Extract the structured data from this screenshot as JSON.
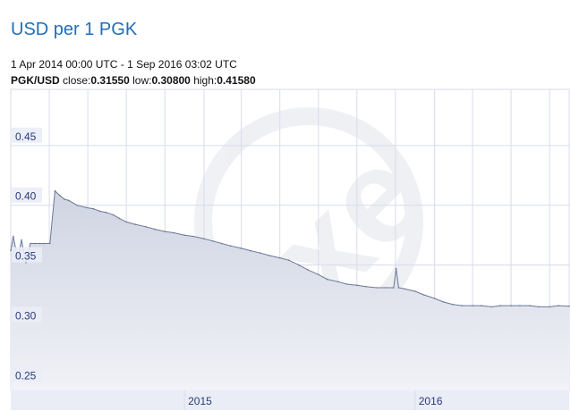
{
  "header": {
    "title": "USD per 1 PGK",
    "date_range": "1 Apr 2014 00:00 UTC - 1 Sep 2016 03:02 UTC",
    "pair": "PGK/USD",
    "close_label": "close:",
    "close_value": "0.31550",
    "low_label": "low:",
    "low_value": "0.30800",
    "high_label": "high:",
    "high_value": "0.41580"
  },
  "colors": {
    "line": "#6b7896",
    "fill_top": "#cfd4e2",
    "fill_bottom": "#f1f2f7",
    "grid": "#d8dcea",
    "axis_label": "#2a3a78",
    "tick_label_bg": "#eaedf6"
  },
  "chart_data": {
    "type": "area",
    "title": "",
    "xlabel": "",
    "ylabel": "",
    "ylim": [
      0.245,
      0.497
    ],
    "xlim": [
      "2014-04-01",
      "2016-09-01"
    ],
    "y_ticks": [
      "0.25",
      "0.30",
      "0.35",
      "0.40",
      "0.45"
    ],
    "x_ticks": [
      {
        "label": "2015",
        "date": "2015-01-01"
      },
      {
        "label": "2016",
        "date": "2016-01-01"
      }
    ],
    "grid": true,
    "series": [
      {
        "values_x": [
          "2014-04-01",
          "2014-04-05",
          "2014-04-12",
          "2014-04-18",
          "2014-04-25",
          "2014-05-02",
          "2014-05-10",
          "2014-05-17",
          "2014-05-24",
          "2014-06-02",
          "2014-06-10",
          "2014-06-18",
          "2014-06-25",
          "2014-07-02",
          "2014-07-15",
          "2014-07-30",
          "2014-08-10",
          "2014-08-20",
          "2014-08-30",
          "2014-09-10",
          "2014-09-20",
          "2014-10-01",
          "2014-10-15",
          "2014-11-01",
          "2014-11-15",
          "2014-12-01",
          "2014-12-15",
          "2015-01-01",
          "2015-01-15",
          "2015-02-01",
          "2015-02-15",
          "2015-03-01",
          "2015-03-15",
          "2015-04-01",
          "2015-04-15",
          "2015-05-01",
          "2015-05-15",
          "2015-06-01",
          "2015-06-15",
          "2015-07-01",
          "2015-07-15",
          "2015-08-01",
          "2015-08-15",
          "2015-09-01",
          "2015-09-15",
          "2015-10-01",
          "2015-10-15",
          "2015-11-01",
          "2015-11-15",
          "2015-11-28",
          "2015-12-02",
          "2015-12-06",
          "2015-12-15",
          "2016-01-01",
          "2016-01-15",
          "2016-02-01",
          "2016-02-15",
          "2016-03-01",
          "2016-03-15",
          "2016-04-01",
          "2016-04-15",
          "2016-05-01",
          "2016-05-15",
          "2016-06-01",
          "2016-06-15",
          "2016-07-01",
          "2016-07-15",
          "2016-08-01",
          "2016-08-15",
          "2016-09-01"
        ],
        "values": [
          0.362,
          0.374,
          0.355,
          0.371,
          0.352,
          0.368,
          0.368,
          0.368,
          0.368,
          0.368,
          0.412,
          0.408,
          0.405,
          0.404,
          0.4,
          0.398,
          0.397,
          0.395,
          0.394,
          0.392,
          0.389,
          0.386,
          0.384,
          0.382,
          0.38,
          0.378,
          0.377,
          0.375,
          0.374,
          0.372,
          0.37,
          0.368,
          0.366,
          0.364,
          0.362,
          0.36,
          0.358,
          0.356,
          0.354,
          0.35,
          0.346,
          0.342,
          0.338,
          0.336,
          0.334,
          0.333,
          0.332,
          0.331,
          0.331,
          0.331,
          0.347,
          0.331,
          0.33,
          0.328,
          0.325,
          0.322,
          0.319,
          0.317,
          0.316,
          0.316,
          0.316,
          0.315,
          0.316,
          0.316,
          0.316,
          0.316,
          0.315,
          0.315,
          0.316,
          0.3155
        ]
      }
    ]
  }
}
